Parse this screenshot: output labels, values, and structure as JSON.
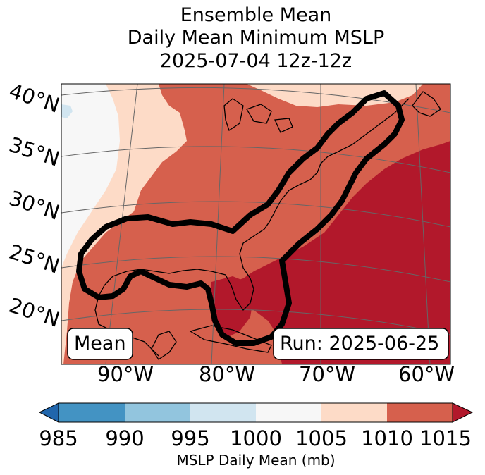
{
  "title_lines": [
    "Ensemble Mean",
    "Daily Mean Minimum MSLP",
    "2025-07-04 12z-12z"
  ],
  "lat_labels": [
    "40°N",
    "35°N",
    "30°N",
    "25°N",
    "20°N"
  ],
  "lon_labels": [
    "90°W",
    "80°W",
    "70°W",
    "60°W"
  ],
  "mean_label": "Mean",
  "run_label": "Run: 2025-06-25",
  "colorbar": {
    "ticks": [
      "985",
      "990",
      "995",
      "1000",
      "1005",
      "1010",
      "1015"
    ],
    "label": "MSLP Daily Mean (mb)",
    "colors": {
      "below": "#2166ac",
      "985-990": "#4393c3",
      "990-995": "#92c5de",
      "995-1000": "#d1e5f0",
      "1000-1005": "#f7f7f7",
      "1005-1010": "#fddbc7",
      "1010-1015": "#d6604d",
      "above": "#b2182b"
    }
  }
}
